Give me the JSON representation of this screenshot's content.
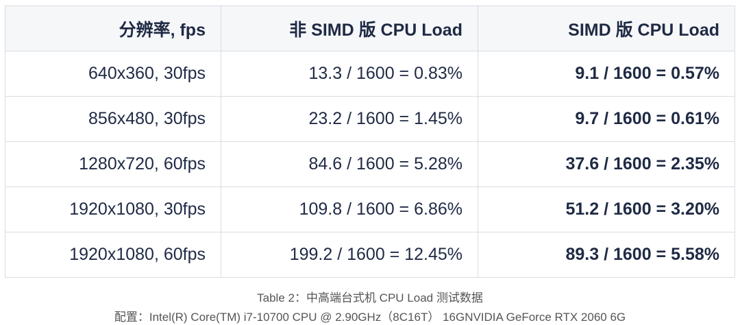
{
  "table": {
    "header": [
      "分辨率, fps",
      "非 SIMD 版 CPU Load",
      "SIMD 版 CPU Load"
    ],
    "rows": [
      [
        "640x360, 30fps",
        "13.3 / 1600 = 0.83%",
        "9.1 / 1600 = 0.57%"
      ],
      [
        "856x480, 30fps",
        "23.2 / 1600 = 1.45%",
        "9.7 / 1600 = 0.61%"
      ],
      [
        "1280x720, 60fps",
        "84.6 / 1600 = 5.28%",
        "37.6 / 1600 = 2.35%"
      ],
      [
        "1920x1080, 30fps",
        "109.8 / 1600 = 6.86%",
        "51.2 / 1600 = 3.20%"
      ],
      [
        "1920x1080, 60fps",
        "199.2 / 1600 = 12.45%",
        "89.3 / 1600 = 5.58%"
      ]
    ]
  },
  "caption": {
    "title": "Table 2：中高端台式机 CPU Load 测试数据",
    "config": "配置：Intel(R) Core(TM) i7-10700 CPU @ 2.90GHz（8C16T） 16GNVIDIA GeForce RTX 2060 6G"
  }
}
